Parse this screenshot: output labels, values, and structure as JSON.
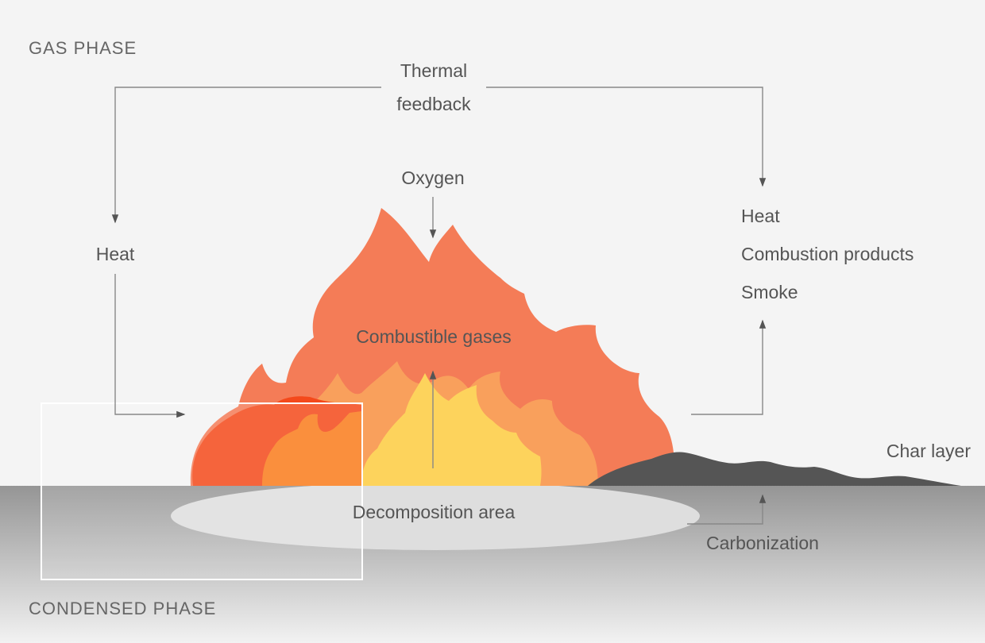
{
  "phases": {
    "gas": "GAS PHASE",
    "condensed": "CONDENSED PHASE"
  },
  "labels": {
    "thermal_feedback": [
      "Thermal",
      "feedback"
    ],
    "oxygen": "Oxygen",
    "heat_left": "Heat",
    "outputs": [
      "Heat",
      "Combustion products",
      "Smoke"
    ],
    "combustible_gases": "Combustible gases",
    "char_layer": "Char layer",
    "decomposition_area": "Decomposition area",
    "carbonization": "Carbonization"
  }
}
